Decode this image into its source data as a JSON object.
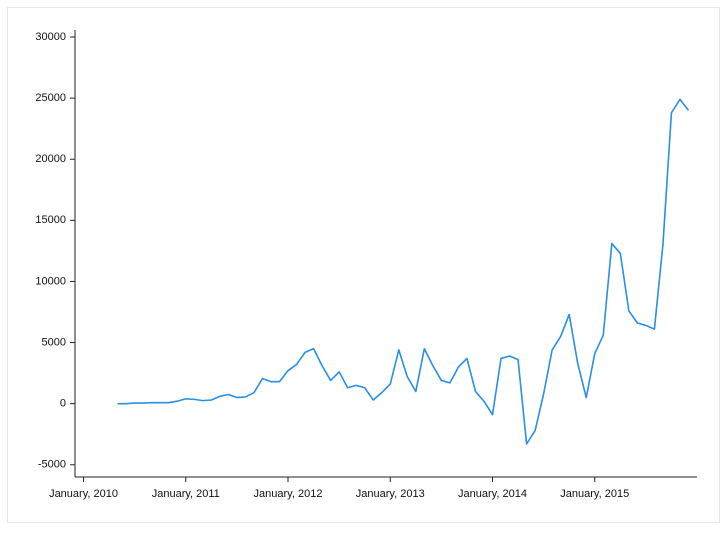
{
  "chart_data": {
    "type": "line",
    "x": [
      "2010-05",
      "2010-06",
      "2010-07",
      "2010-08",
      "2010-09",
      "2010-10",
      "2010-11",
      "2010-12",
      "2011-01",
      "2011-02",
      "2011-03",
      "2011-04",
      "2011-05",
      "2011-06",
      "2011-07",
      "2011-08",
      "2011-09",
      "2011-10",
      "2011-11",
      "2011-12",
      "2012-01",
      "2012-02",
      "2012-03",
      "2012-04",
      "2012-05",
      "2012-06",
      "2012-07",
      "2012-08",
      "2012-09",
      "2012-10",
      "2012-11",
      "2012-12",
      "2013-01",
      "2013-02",
      "2013-03",
      "2013-04",
      "2013-05",
      "2013-06",
      "2013-07",
      "2013-08",
      "2013-09",
      "2013-10",
      "2013-11",
      "2013-12",
      "2014-01",
      "2014-02",
      "2014-03",
      "2014-04",
      "2014-05",
      "2014-06",
      "2014-07",
      "2014-08",
      "2014-09",
      "2014-10",
      "2014-11",
      "2014-12",
      "2015-01",
      "2015-02",
      "2015-03",
      "2015-04",
      "2015-05",
      "2015-06",
      "2015-07",
      "2015-08",
      "2015-09",
      "2015-10",
      "2015-11",
      "2015-12"
    ],
    "series": [
      {
        "color": "#2a8fe6",
        "values": [
          0,
          0,
          50,
          50,
          80,
          80,
          80,
          200,
          400,
          350,
          250,
          300,
          600,
          750,
          500,
          550,
          900,
          2050,
          1800,
          1800,
          2700,
          3200,
          4200,
          4500,
          3100,
          1900,
          2600,
          1300,
          1500,
          1300,
          300,
          900,
          1600,
          4400,
          2200,
          1000,
          4500,
          3100,
          1900,
          1700,
          3000,
          3700,
          1000,
          200,
          -900,
          3700,
          3900,
          3600,
          -3300,
          -2200,
          800,
          4400,
          5500,
          7300,
          3300,
          500,
          4100,
          5600,
          13100,
          12300,
          7600,
          6600,
          6400,
          6100,
          13000,
          23800,
          24900,
          24000
        ]
      }
    ],
    "xlim": [
      "2009-12",
      "2016-01"
    ],
    "xticks": [
      {
        "value": "2010-01",
        "label": "January, 2010"
      },
      {
        "value": "2011-01",
        "label": "January, 2011"
      },
      {
        "value": "2012-01",
        "label": "January, 2012"
      },
      {
        "value": "2013-01",
        "label": "January, 2013"
      },
      {
        "value": "2014-01",
        "label": "January, 2014"
      },
      {
        "value": "2015-01",
        "label": "January, 2015"
      }
    ],
    "ylim": [
      -6000,
      30000
    ],
    "yticks": [
      -5000,
      0,
      5000,
      10000,
      15000,
      20000,
      25000,
      30000
    ]
  }
}
